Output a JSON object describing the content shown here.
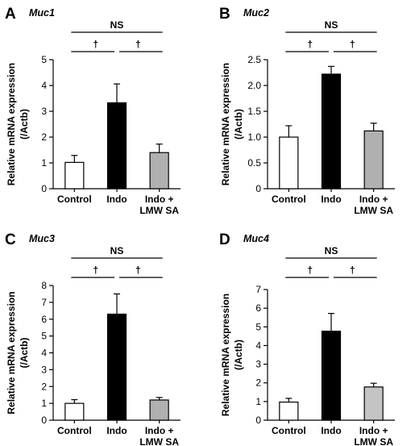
{
  "chart_data": [
    {
      "panel": "A",
      "title": "Muc1",
      "type": "bar",
      "categories": [
        "Control",
        "Indo",
        "Indo +|LMW SA"
      ],
      "values": [
        1.02,
        3.33,
        1.4
      ],
      "errors": [
        0.27,
        0.73,
        0.33
      ],
      "colors": [
        "#ffffff",
        "#000000",
        "#b0b0b0"
      ],
      "ylabel_main": "Relative mRNA expression",
      "ylabel_unit": "(/Actb)",
      "ylim": [
        0,
        5
      ],
      "yticks": [
        "0",
        "1",
        "2",
        "3",
        "4",
        "5"
      ],
      "significance": [
        "†",
        "†",
        "NS"
      ]
    },
    {
      "panel": "B",
      "title": "Muc2",
      "type": "bar",
      "categories": [
        "Control",
        "Indo",
        "Indo +|LMW SA"
      ],
      "values": [
        1.0,
        2.22,
        1.12
      ],
      "errors": [
        0.22,
        0.15,
        0.15
      ],
      "colors": [
        "#ffffff",
        "#000000",
        "#b0b0b0"
      ],
      "ylabel_main": "Relative mRNA expression",
      "ylabel_unit": "(/Actb)",
      "ylim": [
        0,
        2.5
      ],
      "yticks": [
        "0",
        "0.5",
        "1.0",
        "1.5",
        "2.0",
        "2.5"
      ],
      "significance": [
        "†",
        "†",
        "NS"
      ]
    },
    {
      "panel": "C",
      "title": "Muc3",
      "type": "bar",
      "categories": [
        "Control",
        "Indo",
        "Indo +|LMW SA"
      ],
      "values": [
        1.0,
        6.3,
        1.2
      ],
      "errors": [
        0.22,
        1.2,
        0.15
      ],
      "colors": [
        "#ffffff",
        "#000000",
        "#b0b0b0"
      ],
      "ylabel_main": "Relative mRNA expression",
      "ylabel_unit": "(/Actb)",
      "ylim": [
        0,
        8
      ],
      "yticks": [
        "0",
        "1",
        "2",
        "3",
        "4",
        "5",
        "6",
        "7",
        "8"
      ],
      "significance": [
        "†",
        "†",
        "NS"
      ]
    },
    {
      "panel": "D",
      "title": "Muc4",
      "type": "bar",
      "categories": [
        "Control",
        "Indo",
        "Indo +|LMW SA"
      ],
      "values": [
        0.97,
        4.77,
        1.78
      ],
      "errors": [
        0.2,
        0.95,
        0.2
      ],
      "colors": [
        "#ffffff",
        "#000000",
        "#c4c4c4"
      ],
      "ylabel_main": "Relative mRNA expression",
      "ylabel_unit": "(/Actb)",
      "ylim": [
        0,
        7
      ],
      "yticks": [
        "0",
        "1",
        "2",
        "3",
        "4",
        "5",
        "6",
        "7"
      ],
      "significance": [
        "†",
        "†",
        "NS"
      ]
    }
  ]
}
